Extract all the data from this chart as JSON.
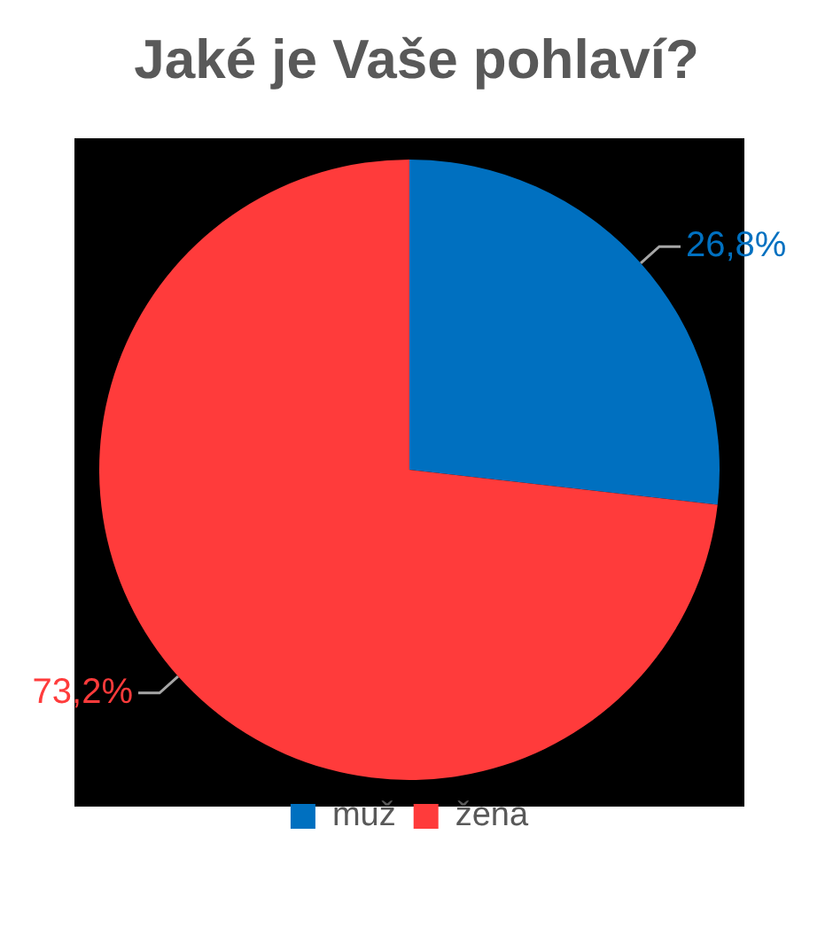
{
  "chart_data": {
    "type": "pie",
    "title": "Jaké je Vaše pohlaví?",
    "categories": [
      "muž",
      "žena"
    ],
    "values": [
      26.8,
      73.2
    ],
    "colors": [
      "#0070c0",
      "#ff3b3b"
    ],
    "value_labels": [
      "26,8%",
      "73,2%"
    ],
    "legend": "bottom"
  }
}
